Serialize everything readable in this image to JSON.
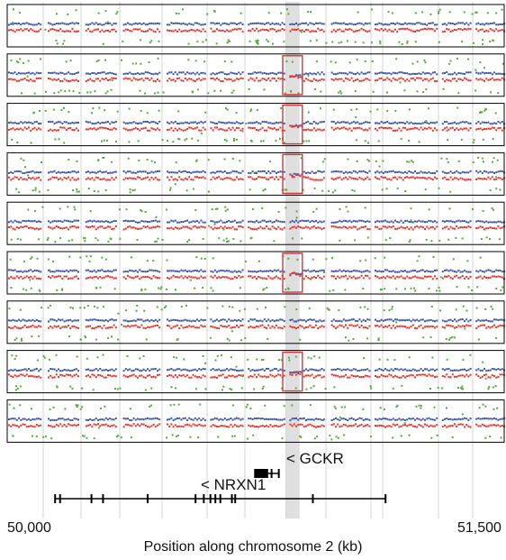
{
  "chart_data": {
    "type": "scatter",
    "description_panels": 9,
    "x_axis": {
      "label": "Position along chromosome 2 (kb)",
      "range": [
        50000,
        51500
      ],
      "tick_labels": [
        "50,000",
        "51,500"
      ],
      "ticks": [
        50000,
        51500
      ]
    },
    "colors": {
      "upper_track": "#3a55a8",
      "lower_track": "#e8322a",
      "outliers": "#5aa83c",
      "highlight_region": "#d9d9d9",
      "highlight_box": "#d9333a",
      "gene_line": "#000000"
    },
    "highlight_region_kb": [
      50842,
      50885
    ],
    "panels": [
      {
        "index": 1,
        "deletion_box": false
      },
      {
        "index": 2,
        "deletion_box": true
      },
      {
        "index": 3,
        "deletion_box": true
      },
      {
        "index": 4,
        "deletion_box": true
      },
      {
        "index": 5,
        "deletion_box": false
      },
      {
        "index": 6,
        "deletion_box": true
      },
      {
        "index": 7,
        "deletion_box": false
      },
      {
        "index": 8,
        "deletion_box": true
      },
      {
        "index": 9,
        "deletion_box": false
      }
    ],
    "genes": [
      {
        "name": "< NRXN1",
        "start_kb": 50145,
        "end_kb": 51145,
        "exons_kb": [
          50145,
          50160,
          50255,
          50290,
          50425,
          50570,
          50595,
          50615,
          50630,
          50645,
          50680,
          50690,
          50925,
          51145
        ]
      },
      {
        "name": "< GCKR",
        "start_kb": 50750,
        "end_kb": 50822,
        "exons_kb": [
          50750,
          50756,
          50762,
          50768,
          50774,
          50780,
          50787,
          50800,
          50822
        ]
      }
    ]
  }
}
